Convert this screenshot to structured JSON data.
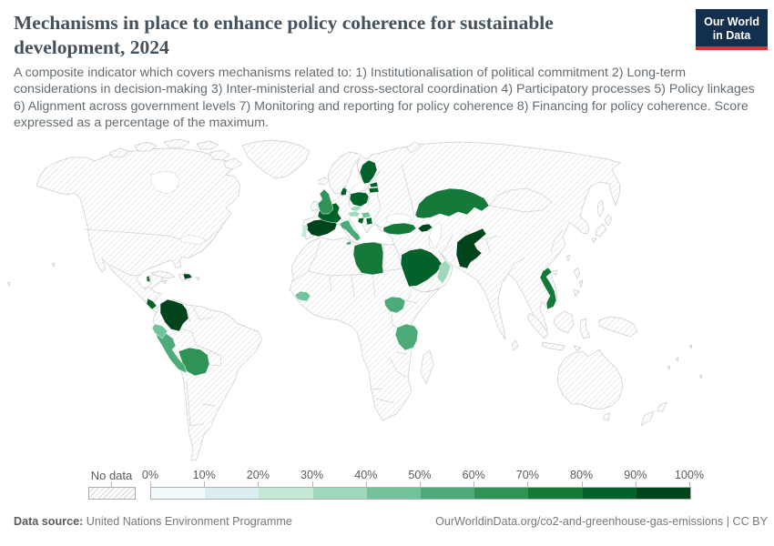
{
  "header": {
    "title": "Mechanisms in place to enhance policy coherence for sustainable development, 2024",
    "subtitle": "A composite indicator which covers mechanisms related to: 1) Institutionalisation of political commitment 2) Long-term considerations in decision-making 3) Inter-ministerial and cross-sectoral coordination 4) Participatory processes 5) Policy linkages 6) Alignment across government levels 7) Monitoring and reporting for policy coherence 8) Financing for policy coherence. Score expressed as a percentage of the maximum.",
    "logo": {
      "line1": "Our World",
      "line2": "in Data",
      "bg_color": "#12304d",
      "accent_color": "#cf383b"
    }
  },
  "footer": {
    "source_label": "Data source:",
    "source_value": "United Nations Environment Programme",
    "right_text": "OurWorldinData.org/co2-and-greenhouse-gas-emissions | CC BY"
  },
  "chart_data": {
    "type": "choropleth",
    "title": "Mechanisms in place to enhance policy coherence for sustainable development",
    "year": 2024,
    "unit": "score as % of maximum",
    "legend_position": "bottom",
    "no_data_label": "No data",
    "bin_labels": [
      "0%",
      "10%",
      "20%",
      "30%",
      "40%",
      "50%",
      "60%",
      "70%",
      "80%",
      "90%",
      "100%"
    ],
    "bin_colors": [
      "#f3fafb",
      "#ddeef3",
      "#c7e7d6",
      "#a0d8bb",
      "#72c39c",
      "#4cab78",
      "#2f9356",
      "#15793a",
      "#03612a",
      "#00441c"
    ],
    "no_data_fill": "hatched",
    "countries": [
      {
        "name": "Colombia",
        "range": "90-100%",
        "bin": 9
      },
      {
        "name": "Spain",
        "range": "90-100%",
        "bin": 9
      },
      {
        "name": "Pakistan",
        "range": "90-100%",
        "bin": 9
      },
      {
        "name": "Azerbaijan",
        "range": "90-100%",
        "bin": 9
      },
      {
        "name": "Dominican Republic",
        "range": "90-100%",
        "bin": 9
      },
      {
        "name": "France",
        "range": "80-90%",
        "bin": 8
      },
      {
        "name": "Poland",
        "range": "80-90%",
        "bin": 8
      },
      {
        "name": "Finland",
        "range": "80-90%",
        "bin": 8
      },
      {
        "name": "Denmark",
        "range": "80-90%",
        "bin": 8
      },
      {
        "name": "Estonia",
        "range": "80-90%",
        "bin": 8
      },
      {
        "name": "Latvia",
        "range": "80-90%",
        "bin": 8
      },
      {
        "name": "Croatia",
        "range": "80-90%",
        "bin": 8
      },
      {
        "name": "Serbia",
        "range": "80-90%",
        "bin": 8
      },
      {
        "name": "Costa Rica",
        "range": "80-90%",
        "bin": 8
      },
      {
        "name": "Saudi Arabia",
        "range": "80-90%",
        "bin": 8
      },
      {
        "name": "Libya",
        "range": "70-80%",
        "bin": 7
      },
      {
        "name": "Turkey",
        "range": "70-80%",
        "bin": 7
      },
      {
        "name": "Kazakhstan",
        "range": "70-80%",
        "bin": 7
      },
      {
        "name": "Vietnam",
        "range": "70-80%",
        "bin": 7
      },
      {
        "name": "Belize",
        "range": "70-80%",
        "bin": 7
      },
      {
        "name": "United Kingdom",
        "range": "60-70%",
        "bin": 6
      },
      {
        "name": "Bolivia",
        "range": "60-70%",
        "bin": 6
      },
      {
        "name": "Peru",
        "range": "50-60%",
        "bin": 5
      },
      {
        "name": "Italy",
        "range": "50-60%",
        "bin": 5
      },
      {
        "name": "Tanzania",
        "range": "50-60%",
        "bin": 5
      },
      {
        "name": "South Sudan",
        "range": "50-60%",
        "bin": 5
      },
      {
        "name": "Ecuador",
        "range": "40-50%",
        "bin": 4
      },
      {
        "name": "Guinea",
        "range": "40-50%",
        "bin": 4
      },
      {
        "name": "Hungary",
        "range": "40-50%",
        "bin": 4
      },
      {
        "name": "Czechia",
        "range": "30-40%",
        "bin": 3
      },
      {
        "name": "Austria",
        "range": "30-40%",
        "bin": 3
      },
      {
        "name": "Oman",
        "range": "30-40%",
        "bin": 3
      },
      {
        "name": "Portugal",
        "range": "20-30%",
        "bin": 2
      }
    ]
  }
}
